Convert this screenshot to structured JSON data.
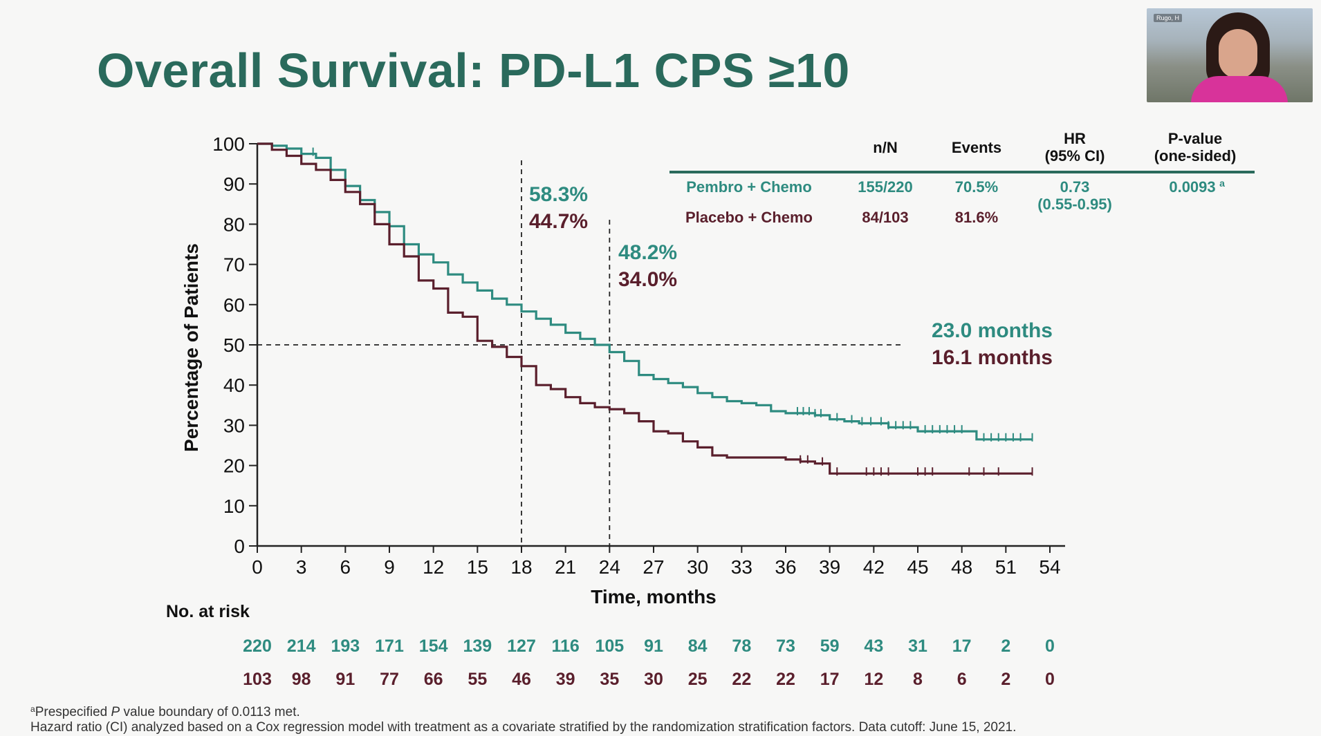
{
  "slide": {
    "title": "Overall Survival: PD-L1 CPS ≥10",
    "footnote1_sup": "a",
    "footnote1_pre": "Prespecified ",
    "footnote1_p": "P",
    "footnote1_post": " value boundary of 0.0113 met.",
    "footnote2": "Hazard ratio (CI) analyzed based on a Cox regression model with treatment as a covariate stratified by the randomization stratification factors. Data cutoff: June 15, 2021."
  },
  "video": {
    "label": "Rugo, H"
  },
  "colors": {
    "pembro": "#2e8b80",
    "placebo": "#5a1f2c",
    "title": "#2a6a5c",
    "axis": "#222222",
    "table_rule": "#2a6a5c"
  },
  "chart_data": {
    "type": "line",
    "subtype": "kaplan-meier",
    "xlabel": "Time, months",
    "ylabel": "Percentage of Patients",
    "xlim": [
      0,
      54
    ],
    "ylim": [
      0,
      100
    ],
    "xticks": [
      0,
      3,
      6,
      9,
      12,
      15,
      18,
      21,
      24,
      27,
      30,
      33,
      36,
      39,
      42,
      45,
      48,
      51,
      54
    ],
    "yticks": [
      0,
      10,
      20,
      30,
      40,
      50,
      60,
      70,
      80,
      90,
      100
    ],
    "reference_lines": {
      "vertical_x": [
        18,
        24
      ],
      "horizontal_y": 50
    },
    "series": [
      {
        "name": "Pembro + Chemo",
        "color_key": "pembro",
        "curve": [
          [
            0,
            100
          ],
          [
            1,
            99.5
          ],
          [
            2,
            98.8
          ],
          [
            3,
            97.5
          ],
          [
            4,
            96.5
          ],
          [
            5,
            93.5
          ],
          [
            6,
            89.5
          ],
          [
            7,
            86
          ],
          [
            8,
            83
          ],
          [
            9,
            79.5
          ],
          [
            10,
            75
          ],
          [
            11,
            72.5
          ],
          [
            12,
            70.5
          ],
          [
            13,
            67.5
          ],
          [
            14,
            65.5
          ],
          [
            15,
            63.5
          ],
          [
            16,
            61.5
          ],
          [
            17,
            60
          ],
          [
            18,
            58.3
          ],
          [
            19,
            56.5
          ],
          [
            20,
            55
          ],
          [
            21,
            53
          ],
          [
            22,
            51.5
          ],
          [
            23,
            50
          ],
          [
            24,
            48.2
          ],
          [
            25,
            46
          ],
          [
            26,
            42.5
          ],
          [
            27,
            41.5
          ],
          [
            28,
            40.5
          ],
          [
            29,
            39.5
          ],
          [
            30,
            38
          ],
          [
            31,
            37
          ],
          [
            32,
            36
          ],
          [
            33,
            35.5
          ],
          [
            34,
            35
          ],
          [
            35,
            33.5
          ],
          [
            36,
            33
          ],
          [
            37,
            33
          ],
          [
            38,
            32.5
          ],
          [
            39,
            31.5
          ],
          [
            40,
            31
          ],
          [
            41,
            30.5
          ],
          [
            42,
            30.5
          ],
          [
            43,
            29.5
          ],
          [
            44,
            29.5
          ],
          [
            45,
            28.5
          ],
          [
            46,
            28.5
          ],
          [
            47,
            28.5
          ],
          [
            48,
            28.5
          ],
          [
            49,
            26.5
          ],
          [
            50,
            26.5
          ],
          [
            51,
            26.5
          ],
          [
            52,
            26.5
          ],
          [
            52.8,
            26.5
          ]
        ],
        "censor_x": [
          3.8,
          36.8,
          37.2,
          37.6,
          38,
          38.4,
          39.5,
          40.5,
          41.2,
          41.8,
          42.5,
          43,
          43.5,
          44,
          44.5,
          45.5,
          46,
          46.5,
          47,
          47.5,
          48,
          49.5,
          50,
          50.5,
          51,
          51.5,
          52,
          52.8
        ],
        "at_risk": [
          220,
          214,
          193,
          171,
          154,
          139,
          127,
          116,
          105,
          91,
          84,
          78,
          73,
          59,
          43,
          31,
          17,
          2,
          0
        ],
        "landmarks": {
          "18": "58.3%",
          "24": "48.2%"
        },
        "median": "23.0 months"
      },
      {
        "name": "Placebo + Chemo",
        "color_key": "placebo",
        "curve": [
          [
            0,
            100
          ],
          [
            1,
            98.5
          ],
          [
            2,
            97
          ],
          [
            3,
            95
          ],
          [
            4,
            93.5
          ],
          [
            5,
            91
          ],
          [
            6,
            88
          ],
          [
            7,
            85
          ],
          [
            8,
            80
          ],
          [
            9,
            75
          ],
          [
            10,
            72
          ],
          [
            11,
            66
          ],
          [
            12,
            64
          ],
          [
            13,
            58
          ],
          [
            14,
            57
          ],
          [
            15,
            51
          ],
          [
            16,
            49.5
          ],
          [
            17,
            47
          ],
          [
            18,
            44.7
          ],
          [
            19,
            40
          ],
          [
            20,
            39
          ],
          [
            21,
            37
          ],
          [
            22,
            35.5
          ],
          [
            23,
            34.5
          ],
          [
            24,
            34
          ],
          [
            25,
            33
          ],
          [
            26,
            31
          ],
          [
            27,
            28.5
          ],
          [
            28,
            28
          ],
          [
            29,
            26
          ],
          [
            30,
            24.5
          ],
          [
            31,
            22.5
          ],
          [
            32,
            22
          ],
          [
            33,
            22
          ],
          [
            34,
            22
          ],
          [
            35,
            22
          ],
          [
            36,
            21.5
          ],
          [
            37,
            21
          ],
          [
            38,
            20.5
          ],
          [
            39,
            18
          ],
          [
            40,
            18
          ],
          [
            42,
            18
          ],
          [
            44,
            18
          ],
          [
            46,
            18
          ],
          [
            48,
            18
          ],
          [
            50,
            18
          ],
          [
            52,
            18
          ],
          [
            52.8,
            18
          ]
        ],
        "censor_x": [
          37,
          37.5,
          38.5,
          39.5,
          41.5,
          42,
          42.5,
          43,
          45,
          45.5,
          46,
          48.5,
          49.5,
          50.5,
          52.8
        ],
        "at_risk": [
          103,
          98,
          91,
          77,
          66,
          55,
          46,
          39,
          35,
          30,
          25,
          22,
          22,
          17,
          12,
          8,
          6,
          2,
          0
        ],
        "landmarks": {
          "18": "44.7%",
          "24": "34.0%"
        },
        "median": "16.1 months"
      }
    ],
    "at_risk_label": "No. at risk",
    "stats_table": {
      "headers": [
        "n/N",
        "Events",
        "HR\n(95% CI)",
        "P-value\n(one-sided)"
      ],
      "rows": [
        {
          "name": "Pembro + Chemo",
          "nN": "155/220",
          "events": "70.5%",
          "hr": "0.73",
          "ci": "(0.55-0.95)",
          "p": "0.0093",
          "p_sup": "a"
        },
        {
          "name": "Placebo + Chemo",
          "nN": "84/103",
          "events": "81.6%"
        }
      ]
    }
  }
}
